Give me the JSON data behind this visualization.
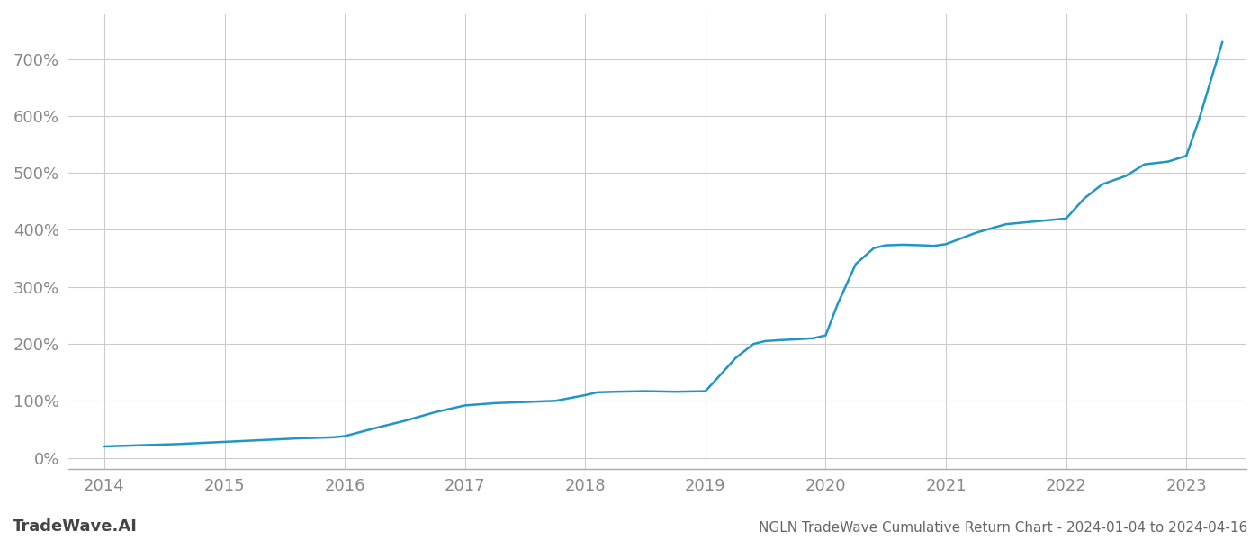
{
  "title": "NGLN TradeWave Cumulative Return Chart - 2024-01-04 to 2024-04-16",
  "watermark": "TradeWave.AI",
  "line_color": "#2196c4",
  "line_width": 1.8,
  "background_color": "#ffffff",
  "grid_color": "#cccccc",
  "x_years": [
    2014,
    2015,
    2016,
    2017,
    2018,
    2019,
    2020,
    2021,
    2022,
    2023
  ],
  "y_ticks": [
    0,
    100,
    200,
    300,
    400,
    500,
    600,
    700
  ],
  "xlim": [
    2013.7,
    2023.5
  ],
  "ylim": [
    -20,
    780
  ],
  "data_x": [
    2014.0,
    2014.3,
    2014.6,
    2014.9,
    2015.0,
    2015.3,
    2015.6,
    2015.9,
    2016.0,
    2016.25,
    2016.5,
    2016.75,
    2017.0,
    2017.25,
    2017.5,
    2017.75,
    2018.0,
    2018.1,
    2018.25,
    2018.5,
    2018.75,
    2019.0,
    2019.1,
    2019.25,
    2019.4,
    2019.5,
    2019.65,
    2019.75,
    2019.9,
    2020.0,
    2020.1,
    2020.25,
    2020.4,
    2020.5,
    2020.65,
    2020.8,
    2020.9,
    2021.0,
    2021.25,
    2021.5,
    2021.75,
    2022.0,
    2022.15,
    2022.3,
    2022.5,
    2022.65,
    2022.85,
    2023.0,
    2023.1,
    2023.2,
    2023.3
  ],
  "data_y": [
    20,
    22,
    24,
    27,
    28,
    31,
    34,
    36,
    38,
    52,
    65,
    80,
    92,
    96,
    98,
    100,
    110,
    115,
    116,
    117,
    116,
    117,
    140,
    175,
    200,
    205,
    207,
    208,
    210,
    215,
    270,
    340,
    368,
    373,
    374,
    373,
    372,
    375,
    395,
    410,
    415,
    420,
    455,
    480,
    495,
    515,
    520,
    530,
    590,
    660,
    730
  ]
}
